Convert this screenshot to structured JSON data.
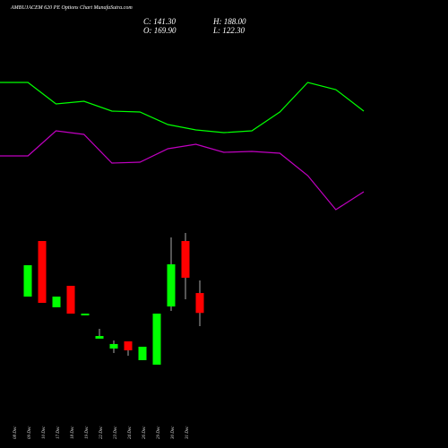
{
  "chart_data": [
    {
      "type": "line",
      "series": [
        {
          "color": "#00ff00",
          "values": [
            208,
            208,
            184,
            187,
            176,
            175,
            161,
            155,
            152,
            154,
            175,
            208,
            200,
            176
          ]
        },
        {
          "color": "#c000c0",
          "values": [
            126,
            126,
            154,
            150,
            118,
            119,
            134,
            139,
            130,
            131,
            129,
            104,
            66,
            86
          ]
        }
      ]
    },
    {
      "type": "candlestick",
      "title": "AMBUJACEM 620 PE Options Chart MunafaSutra.com",
      "annotations": [
        "C: 141.30",
        "H: 188.00",
        "O: 169.90",
        "L: 122.30"
      ],
      "up_color": "#00ff00",
      "down_color": "#ff0000",
      "categories": [
        "08 Dec",
        "09 Dec",
        "10 Dec",
        "17 Dec",
        "18 Dec",
        "19 Dec",
        "22 Dec",
        "23 Dec",
        "24 Dec",
        "26 Dec",
        "29 Dec",
        "30 Dec",
        "31 Dec"
      ],
      "open": [
        164.8,
        244.7,
        149.4,
        180.3,
        137.8,
        104.3,
        90.1,
        100.4,
        73.4,
        66.9,
        150.6,
        244.7,
        169.9
      ],
      "high": [
        209.9,
        244.7,
        164.8,
        180.3,
        140.3,
        118.4,
        101.7,
        100.4,
        92.7,
        140.3,
        249.8,
        256.3,
        188.0
      ],
      "low": [
        164.8,
        155.8,
        149.4,
        140.3,
        137.8,
        104.3,
        83.7,
        79.8,
        73.4,
        66.9,
        144.2,
        161.0,
        122.3
      ],
      "close": [
        209.9,
        155.8,
        164.8,
        140.3,
        140.3,
        108.1,
        96.6,
        87.5,
        92.7,
        140.3,
        211.2,
        191.9,
        141.3
      ]
    }
  ]
}
